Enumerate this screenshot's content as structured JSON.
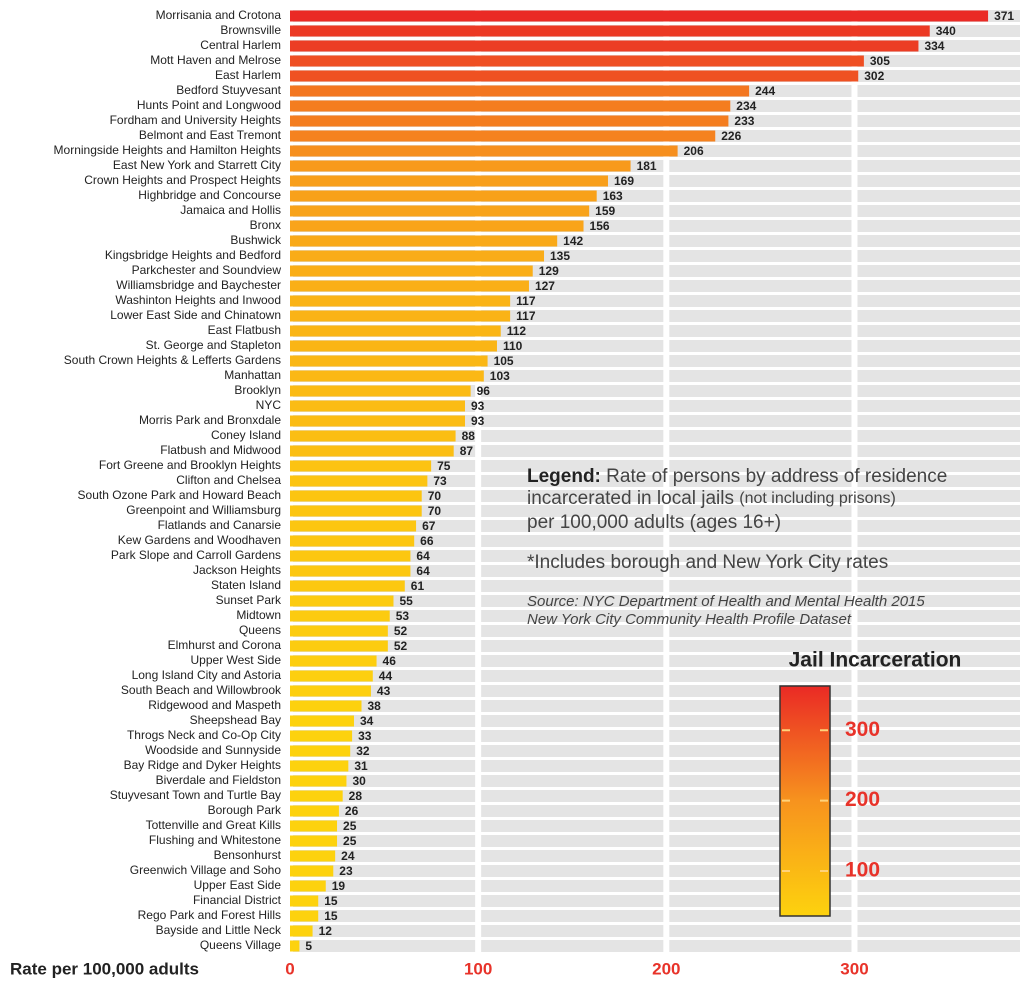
{
  "chart_data": {
    "type": "bar",
    "orientation": "horizontal",
    "categories": [
      "Morrisania and Crotona",
      "Brownsville",
      "Central Harlem",
      "Mott Haven and Melrose",
      "East Harlem",
      "Bedford Stuyvesant",
      "Hunts Point and Longwood",
      "Fordham and University Heights",
      "Belmont and East Tremont",
      "Morningside Heights and Hamilton Heights",
      "East New York and Starrett City",
      "Crown Heights and Prospect Heights",
      "Highbridge and Concourse",
      "Jamaica and Hollis",
      "Bronx",
      "Bushwick",
      "Kingsbridge Heights and Bedford",
      "Parkchester and Soundview",
      "Williamsbridge and Baychester",
      "Washinton Heights and Inwood",
      "Lower East Side and Chinatown",
      "East Flatbush",
      "St. George and Stapleton",
      "South Crown Heights & Lefferts Gardens",
      "Manhattan",
      "Brooklyn",
      "NYC",
      "Morris Park and Bronxdale",
      "Coney Island",
      "Flatbush and Midwood",
      "Fort Greene and Brooklyn Heights",
      "Clifton and Chelsea",
      "South Ozone Park and Howard Beach",
      "Greenpoint and Williamsburg",
      "Flatlands and Canarsie",
      "Kew Gardens and Woodhaven",
      "Park Slope and Carroll Gardens",
      "Jackson Heights",
      "Staten Island",
      "Sunset Park",
      "Midtown",
      "Queens",
      "Elmhurst and Corona",
      "Upper West Side",
      "Long Island City and Astoria",
      "South Beach and Willowbrook",
      "Ridgewood and Maspeth",
      "Sheepshead Bay",
      "Throgs Neck and Co-Op City",
      "Woodside and Sunnyside",
      "Bay Ridge and Dyker Heights",
      "Biverdale and Fieldston",
      "Stuyvesant Town and Turtle Bay",
      "Borough Park",
      "Tottenville and Great Kills",
      "Flushing and Whitestone",
      "Bensonhurst",
      "Greenwich Village and Soho",
      "Upper East Side",
      "Financial District",
      "Rego Park and Forest Hills",
      "Bayside and Little Neck",
      "Queens Village"
    ],
    "values": [
      371,
      340,
      334,
      305,
      302,
      244,
      234,
      233,
      226,
      206,
      181,
      169,
      163,
      159,
      156,
      142,
      135,
      129,
      127,
      117,
      117,
      112,
      110,
      105,
      103,
      96,
      93,
      93,
      88,
      87,
      75,
      73,
      70,
      70,
      67,
      66,
      64,
      64,
      61,
      55,
      53,
      52,
      52,
      46,
      44,
      43,
      38,
      34,
      33,
      32,
      31,
      30,
      28,
      26,
      25,
      25,
      24,
      23,
      19,
      15,
      15,
      12,
      5
    ],
    "xlim": [
      0,
      380
    ],
    "xticks": [
      0,
      100,
      200,
      300
    ],
    "grid": true,
    "xlabel": "Rate per 100,000 adults",
    "colorscale": [
      "#fdd20e",
      "#f7931e",
      "#ea2a25"
    ],
    "colorbar": {
      "title": "Jail Incarceration",
      "lim": [
        36,
        363
      ],
      "ticks": [
        100,
        200,
        300
      ]
    },
    "legend": {
      "heading": "Legend:",
      "text": "Rate of persons by address of residence",
      "text2": "incarcerated in local jails",
      "text3": "(not including prisons)",
      "text4": "per 100,000 adults (ages 16+)"
    },
    "note": "*Includes borough and New York City rates",
    "source": [
      "Source: NYC Department of Health and Mental Health 2015",
      "New York City Community Health Profile Dataset"
    ]
  }
}
